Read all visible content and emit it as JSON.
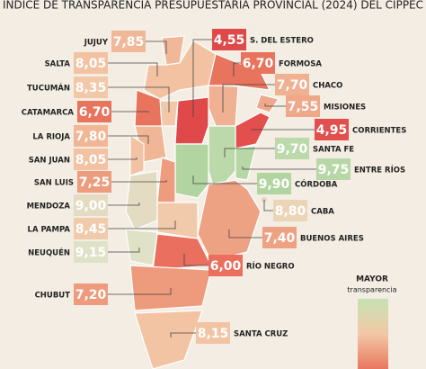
{
  "header": {
    "title": "ÍNDICE DE TRANSPARENCIA PRESUPUESTARIA PROVINCIAL (2024) DEL CIPPEC"
  },
  "provinces": [
    {
      "name": "JUJUY",
      "score": "7,85",
      "color": "#f0b898"
    },
    {
      "name": "SALTA",
      "score": "8,05",
      "color": "#f2c2a2"
    },
    {
      "name": "TUCUMÁN",
      "score": "8,35",
      "color": "#f2c8a8"
    },
    {
      "name": "CATAMARCA",
      "score": "6,70",
      "color": "#e8745e"
    },
    {
      "name": "LA RIOJA",
      "score": "7,80",
      "color": "#f0b696"
    },
    {
      "name": "SAN JUAN",
      "score": "8,05",
      "color": "#f2c2a2"
    },
    {
      "name": "SAN LUIS",
      "score": "7,25",
      "color": "#ee9c7e"
    },
    {
      "name": "MENDOZA",
      "score": "9,00",
      "color": "#e4dcc2"
    },
    {
      "name": "LA PAMPA",
      "score": "8,45",
      "color": "#f0caaa"
    },
    {
      "name": "NEUQUÉN",
      "score": "9,15",
      "color": "#dfe2c6"
    },
    {
      "name": "CHUBUT",
      "score": "7,20",
      "color": "#ee9a7c"
    },
    {
      "name": "SANTA CRUZ",
      "score": "8,15",
      "color": "#f2c4a4"
    },
    {
      "name": "S. DEL ESTERO",
      "score": "4,55",
      "color": "#e0494a"
    },
    {
      "name": "FORMOSA",
      "score": "6,70",
      "color": "#e8745e"
    },
    {
      "name": "CHACO",
      "score": "7,70",
      "color": "#f0b092"
    },
    {
      "name": "MISIONES",
      "score": "7,55",
      "color": "#efa88a"
    },
    {
      "name": "CORRIENTES",
      "score": "4,95",
      "color": "#e24f4c"
    },
    {
      "name": "SANTA FE",
      "score": "9,70",
      "color": "#bcd9aa"
    },
    {
      "name": "ENTRE RÍOS",
      "score": "9,75",
      "color": "#b8d7a6"
    },
    {
      "name": "CÓRDOBA",
      "score": "9,90",
      "color": "#b2d4a0"
    },
    {
      "name": "CABA",
      "score": "8,80",
      "color": "#ecd4b6"
    },
    {
      "name": "BUENOS AIRES",
      "score": "7,40",
      "color": "#eea284"
    },
    {
      "name": "RÍO NEGRO",
      "score": "6,00",
      "color": "#ea6f5e"
    }
  ],
  "legend": {
    "top": "MAYOR",
    "caption": "transparencia"
  }
}
